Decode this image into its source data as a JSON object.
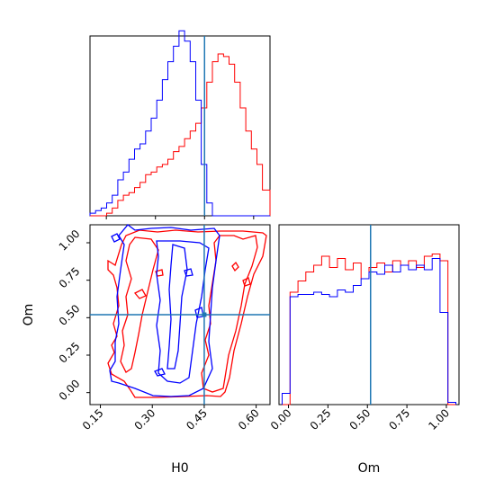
{
  "chart_data": {
    "type": "corner",
    "parameters": [
      "H0",
      "Om"
    ],
    "truth": {
      "H0": 0.45,
      "Om": 0.52
    },
    "truth_color": "#1f77b4",
    "series": [
      {
        "color": "#ff0000"
      },
      {
        "color": "#0000ff"
      }
    ],
    "panels": {
      "hist_H0": {
        "xlim": [
          0.1,
          0.65
        ],
        "bins_x": [
          0.1,
          0.117,
          0.134,
          0.151,
          0.168,
          0.185,
          0.202,
          0.219,
          0.236,
          0.253,
          0.27,
          0.287,
          0.304,
          0.321,
          0.338,
          0.355,
          0.372,
          0.389,
          0.406,
          0.423,
          0.44,
          0.457,
          0.474,
          0.491,
          0.508,
          0.525,
          0.542,
          0.559,
          0.576,
          0.593,
          0.61,
          0.627,
          0.65
        ],
        "counts_red": [
          0,
          0,
          0,
          1,
          3,
          6,
          8,
          9,
          11,
          13,
          16,
          17,
          19,
          20,
          22,
          25,
          27,
          30,
          33,
          36,
          42,
          52,
          60,
          63,
          62,
          59,
          52,
          42,
          33,
          26,
          20,
          10
        ],
        "counts_blue": [
          1,
          2,
          3,
          5,
          8,
          14,
          17,
          22,
          26,
          28,
          33,
          38,
          45,
          53,
          60,
          66,
          72,
          68,
          60,
          45,
          20,
          5,
          0,
          0,
          0,
          0,
          0,
          0,
          0,
          0,
          0,
          0
        ],
        "ymax": 70
      },
      "hist_Om": {
        "xlim": [
          -0.06,
          1.08
        ],
        "bins_x": [
          -0.04,
          0.01,
          0.06,
          0.11,
          0.16,
          0.21,
          0.26,
          0.31,
          0.36,
          0.41,
          0.46,
          0.51,
          0.56,
          0.61,
          0.66,
          0.71,
          0.76,
          0.81,
          0.86,
          0.91,
          0.96,
          1.01,
          1.06
        ],
        "counts_red": [
          0,
          50,
          55,
          59,
          62,
          66,
          61,
          65,
          60,
          63,
          56,
          61,
          63,
          59,
          64,
          62,
          64,
          61,
          66,
          67,
          64,
          0
        ],
        "counts_blue": [
          5,
          48,
          49,
          49,
          50,
          49,
          48,
          51,
          50,
          53,
          56,
          59,
          58,
          62,
          59,
          62,
          60,
          62,
          60,
          65,
          41,
          1
        ],
        "ymax": 80
      },
      "joint": {
        "xlim": [
          0.12,
          0.64
        ],
        "ylim": [
          -0.08,
          1.12
        ],
        "xticks": [
          "0.15",
          "0.30",
          "0.45",
          "0.60"
        ],
        "yticks": [
          "0.00",
          "0.25",
          "0.50",
          "0.75",
          "1.00"
        ]
      }
    },
    "om_xticks": [
      "0.00",
      "0.25",
      "0.50",
      "0.75",
      "1.00"
    ],
    "xlabel_joint": "H0",
    "ylabel_joint": "Om",
    "xlabel_om": "Om"
  }
}
